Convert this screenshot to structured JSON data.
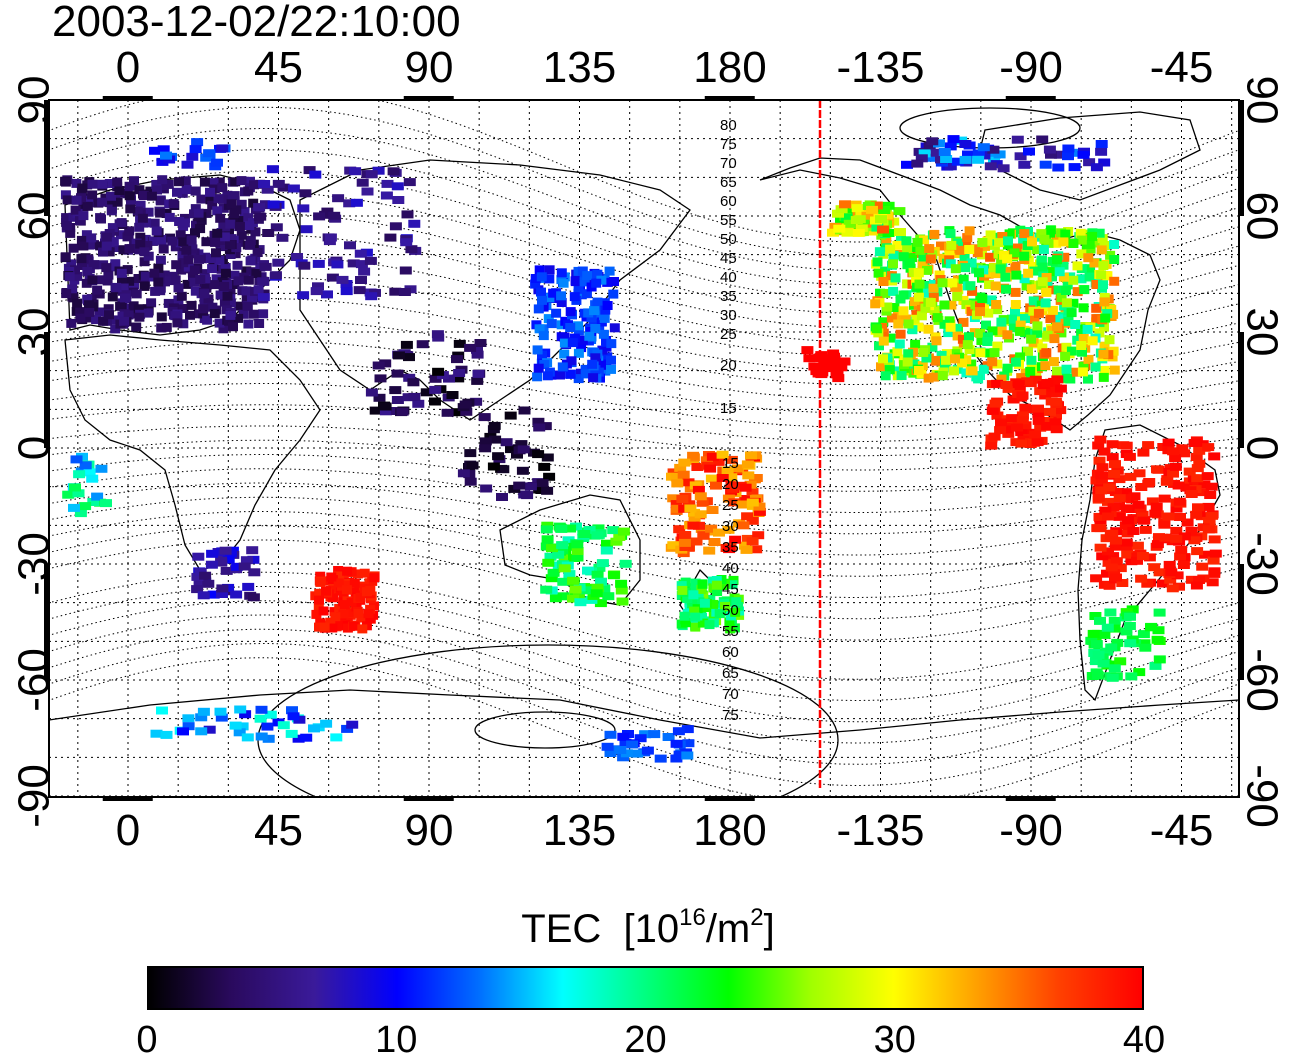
{
  "title": "2003-12-02/22:10:00",
  "map": {
    "lon_ticks": [
      "0",
      "45",
      "90",
      "135",
      "180",
      "-135",
      "-90",
      "-45"
    ],
    "lat_ticks": [
      "90",
      "60",
      "30",
      "0",
      "-30",
      "-60",
      "-90"
    ],
    "terminator_color": "#ff0000",
    "contour_labels_north": [
      "80",
      "75",
      "70",
      "65",
      "60",
      "55",
      "50",
      "45",
      "40",
      "35",
      "30",
      "25",
      "20",
      "15"
    ],
    "contour_labels_south": [
      "15",
      "20",
      "25",
      "30",
      "35",
      "40",
      "45",
      "50",
      "55",
      "60",
      "65",
      "70",
      "75"
    ]
  },
  "colorbar": {
    "label": "TEC",
    "unit_base": "10",
    "unit_exp": "16",
    "unit_mid": "/m",
    "unit_exp2": "2",
    "ticks": [
      "0",
      "10",
      "20",
      "30",
      "40"
    ],
    "colors": [
      "#000000",
      "#2a0a5e",
      "#3a1a9a",
      "#0000ff",
      "#0070ff",
      "#00ffff",
      "#00ff80",
      "#00ff00",
      "#a0ff00",
      "#ffff00",
      "#ffa000",
      "#ff4000",
      "#ff0000"
    ]
  }
}
